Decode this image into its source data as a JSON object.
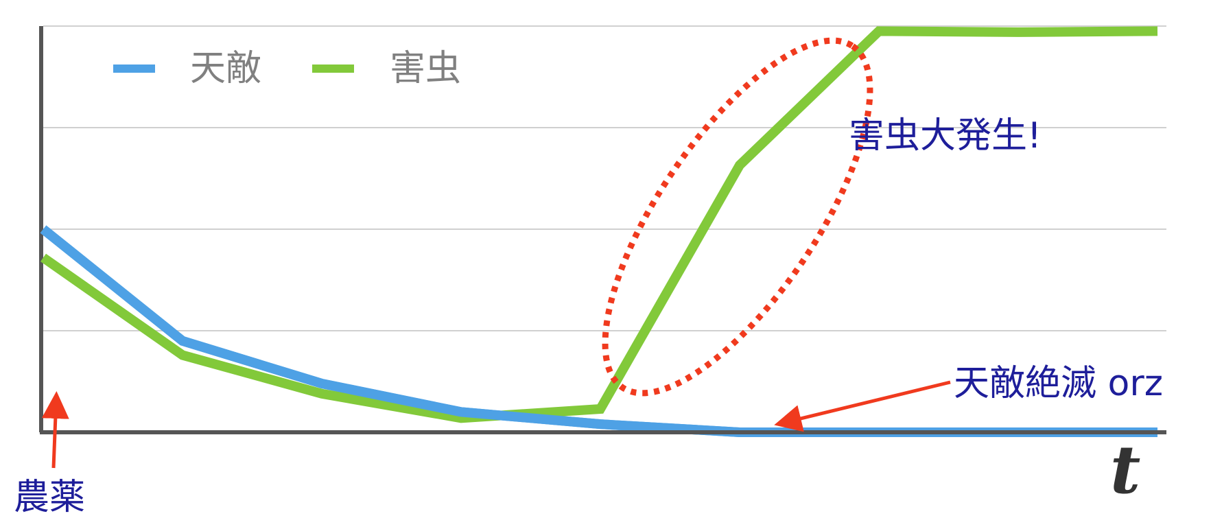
{
  "chart_data": {
    "type": "line",
    "xlabel": "t",
    "ylim": [
      0,
      4
    ],
    "x": [
      0,
      1,
      2,
      3,
      4,
      5,
      6,
      7,
      8
    ],
    "grid": true,
    "legend_position": "top-left",
    "series": [
      {
        "name": "天敵",
        "color": "#4EA1E5",
        "values": [
          2.0,
          0.9,
          0.48,
          0.2,
          0.08,
          0.0,
          0.0,
          0.0,
          0.0
        ]
      },
      {
        "name": "害虫",
        "color": "#82C93A",
        "values": [
          1.72,
          0.76,
          0.38,
          0.14,
          0.23,
          2.63,
          3.95,
          3.94,
          3.95
        ]
      }
    ],
    "annotations": {
      "outbreak": "害虫大発生!",
      "extinction": "天敵絶滅 orz",
      "pesticide": "農薬"
    },
    "colors": {
      "annotation_text": "#1E1E9A",
      "arrow": "#F03A1E",
      "ellipse": "#F03A1E",
      "axis": "#555555",
      "grid": "#D0D0D0",
      "legend_text": "#808080"
    }
  }
}
